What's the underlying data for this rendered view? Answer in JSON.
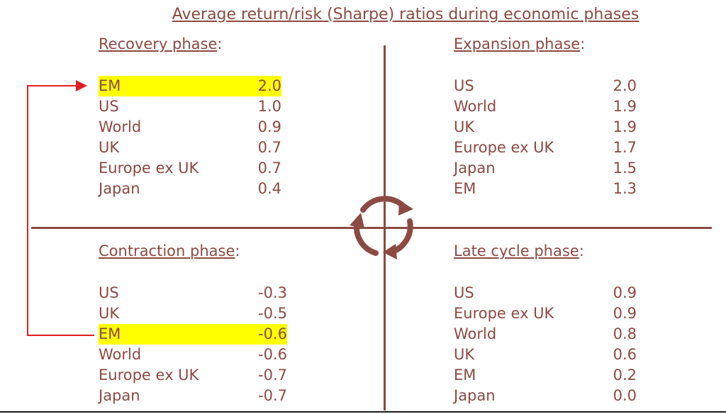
{
  "title": "Average return/risk (Sharpe) ratios during economic phases",
  "colors": {
    "text": "#8b4a42",
    "highlight": "#ffff00",
    "arrow": "#e02020"
  },
  "icons": {
    "cycle": "circular-arrows-icon"
  },
  "quadrants": {
    "recovery": {
      "heading": "Recovery phase",
      "rows": [
        {
          "region": "EM",
          "value": "2.0",
          "highlight": true
        },
        {
          "region": "US",
          "value": "1.0"
        },
        {
          "region": "World",
          "value": "0.9"
        },
        {
          "region": "UK",
          "value": "0.7"
        },
        {
          "region": "Europe ex UK",
          "value": "0.7"
        },
        {
          "region": "Japan",
          "value": "0.4"
        }
      ]
    },
    "expansion": {
      "heading": "Expansion phase",
      "rows": [
        {
          "region": "US",
          "value": "2.0"
        },
        {
          "region": "World",
          "value": "1.9"
        },
        {
          "region": "UK",
          "value": "1.9"
        },
        {
          "region": "Europe ex UK",
          "value": "1.7"
        },
        {
          "region": "Japan",
          "value": "1.5"
        },
        {
          "region": "EM",
          "value": "1.3"
        }
      ]
    },
    "contraction": {
      "heading": "Contraction phase",
      "rows": [
        {
          "region": "US",
          "value": "-0.3"
        },
        {
          "region": "UK",
          "value": "-0.5"
        },
        {
          "region": "EM",
          "value": "-0.6",
          "highlight": true
        },
        {
          "region": "World",
          "value": "-0.6"
        },
        {
          "region": "Europe ex UK",
          "value": "-0.7"
        },
        {
          "region": "Japan",
          "value": "-0.7"
        }
      ]
    },
    "late_cycle": {
      "heading": "Late cycle phase",
      "rows": [
        {
          "region": "US",
          "value": "0.9"
        },
        {
          "region": "Europe ex UK",
          "value": "0.9"
        },
        {
          "region": "World",
          "value": "0.8"
        },
        {
          "region": "UK",
          "value": "0.6"
        },
        {
          "region": "EM",
          "value": "0.2"
        },
        {
          "region": "Japan",
          "value": "0.0"
        }
      ]
    }
  }
}
